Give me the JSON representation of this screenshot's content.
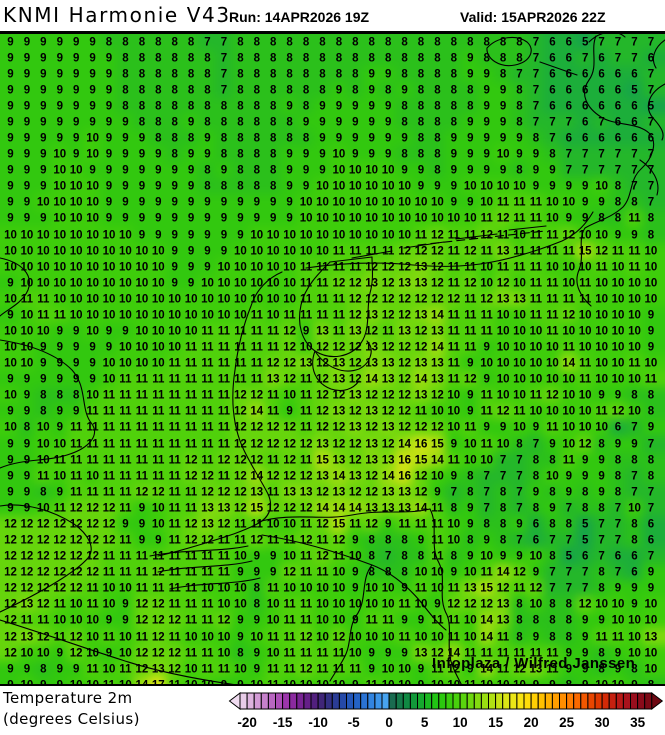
{
  "header": {
    "title": "KNMI Harmonie V43",
    "run": "Run: 14APR2026 19Z",
    "valid": "Valid: 15APR2026 22Z"
  },
  "map": {
    "attribution": "Infoplaza / Wilfred Janssen",
    "shading_colors": {
      "4": "#12985A",
      "5": "#16A44A",
      "6": "#1CAE3A",
      "7": "#24B72A",
      "8": "#2BC01B",
      "9": "#32C80F",
      "10": "#3ECD0B",
      "11": "#50D10B",
      "12": "#66D50C",
      "13": "#80D90E",
      "14": "#9CDC10",
      "15": "#B8DF12",
      "16": "#D0E214",
      "17": "#E4E416"
    },
    "grid": {
      "cols": 40,
      "rows": [
        "9 9 9 9 9 9 8 8 8 8 8 8 7 7 8 8 8 8 8 8 8 8 8 8 8 8 8 8 8 8 8 8 7 6 6 5 7 7 7 7",
        "9 9 9 9 9 9 9 8 8 8 8 8 8 7 8 8 8 8 8 8 8 8 8 8 8 8 8 8 9 8 8 8 7 6 6 7 6 7 7 6",
        "9 9 9 9 9 9 9 8 8 8 8 8 8 7 8 8 8 8 8 8 8 8 9 9 8 8 8 8 9 9 8 7 7 6 6 6 6 6 6 7",
        "9 9 9 9 9 9 9 8 8 8 8 8 8 7 8 8 8 8 8 8 9 8 9 8 9 8 8 8 8 9 9 8 7 6 6 6 6 6 5 7",
        "9 9 9 9 9 9 9 8 8 8 8 8 8 8 8 8 8 9 8 9 9 9 9 9 8 8 8 8 8 9 9 8 7 6 6 6 6 6 6 5",
        "9 9 9 9 9 9 9 9 8 8 8 9 8 8 8 8 8 8 9 9 9 9 9 9 8 8 8 8 9 9 9 8 7 7 7 6 7 6 6 7",
        "9 9 9 9 9 10 9 9 9 8 8 8 9 8 8 8 8 8 8 9 9 9 9 9 9 8 8 9 9 9 9 9 8 7 6 6 6 6 6 6",
        "9 9 9 10 9 10 9 9 9 9 8 9 9 8 8 8 8 9 9 9 10 9 9 9 8 8 8 9 9 9 10 9 9 8 7 7 7 7 7 7",
        "9 9 9 10 10 9 9 9 9 9 9 9 8 9 8 8 8 9 9 9 10 10 10 10 9 9 8 9 9 9 9 8 9 9 7 7 7 7 7 7",
        "9 9 9 10 10 10 9 9 9 9 9 9 8 8 8 8 8 9 9 10 10 10 10 10 10 9 9 9 10 10 10 10 9 9 9 9 10 8 7 7",
        "9 9 10 10 10 10 9 9 9 9 9 9 9 9 9 9 9 9 10 10 10 10 10 10 10 10 10 9 9 10 11 11 11 10 10 9 9 8 8 7",
        "9 9 9 10 10 10 9 9 9 9 9 9 9 9 9 9 9 9 10 10 10 10 10 10 10 10 10 10 10 11 12 11 11 10 9 9 8 8 11 8",
        "10 10 10 10 10 10 10 10 9 9 9 9 9 9 9 10 10 10 10 10 10 10 10 10 10 11 12 11 11 12 11 10 11 11 12 10 10 9 9 8",
        "10 10 10 10 10 10 10 10 10 10 9 9 9 9 10 10 10 10 10 10 11 11 11 11 12 12 12 11 12 11 13 11 11 11 11 15 12 11 11 10",
        "10 10 10 10 10 10 10 10 10 10 9 9 9 10 10 10 10 10 11 11 11 11 12 12 12 13 12 11 11 10 11 11 11 10 10 10 11 10 11 10",
        "9 10 10 10 10 10 10 10 10 10 9 9 10 10 10 10 10 10 11 11 12 12 13 12 13 13 12 11 12 10 12 10 11 11 10 11 10 10 10 10",
        "10 11 11 10 10 10 10 10 10 10 10 10 10 10 10 10 10 10 11 11 11 12 12 12 12 12 12 12 11 12 13 13 11 11 11 11 10 10 10 10",
        "9 10 11 11 10 10 10 10 10 10 10 10 10 10 10 11 10 11 11 11 11 12 13 12 12 13 14 11 11 11 10 10 11 11 12 10 10 10 10 9",
        "10 10 10 9 9 10 9 9 10 10 10 10 11 11 11 11 11 12 9 13 11 13 12 11 13 12 13 11 11 11 10 10 10 11 10 10 10 10 10 9",
        "10 10 9 9 9 9 9 10 10 10 10 11 11 11 11 11 11 12 10 12 12 12 13 12 12 12 14 11 11 9 10 10 10 10 11 10 10 10 10 9",
        "10 10 9 9 9 9 10 10 10 10 11 11 11 11 11 11 12 12 13 12 13 12 13 13 12 13 13 11 9 10 10 10 10 10 14 11 10 10 11 10",
        "9 9 9 9 9 9 10 11 11 11 11 11 11 11 11 11 13 12 11 12 13 12 14 13 12 14 13 11 12 9 10 10 10 10 10 11 10 10 10 11",
        "10 9 8 8 8 10 11 11 11 11 11 11 11 11 12 12 11 10 11 12 12 13 12 12 12 13 12 10 9 11 10 10 11 12 10 10 9 9 8 8",
        "9 9 8 9 9 11 11 11 11 11 11 11 11 11 12 14 11 9 11 12 13 12 13 12 12 11 10 10 9 11 12 11 10 10 10 10 11 12 10 8",
        "10 8 10 9 11 11 11 11 11 11 11 11 11 11 12 12 12 12 11 12 12 13 12 13 12 12 12 10 11 9 9 10 9 11 10 10 10 6 7 9",
        "9 9 10 10 11 11 11 11 11 11 11 11 11 11 12 12 12 12 12 13 12 12 13 12 14 16 15 9 10 11 10 8 7 9 10 12 8 9 9 7",
        "9 9 10 11 11 11 11 11 11 11 11 12 11 12 12 12 11 12 11 15 13 12 13 13 16 15 14 11 10 10 7 7 8 8 11 9 9 8 8 8",
        "9 9 11 10 11 10 11 11 11 11 11 12 12 11 12 14 12 12 12 13 14 13 12 14 16 12 10 9 8 7 7 7 8 10 9 9 9 8 7 8",
        "9 9 8 9 11 11 11 11 12 12 11 11 12 12 12 13 11 13 13 12 13 12 12 13 13 12 9 7 8 7 8 7 9 8 9 8 9 8 7 7",
        "9 9 10 11 12 12 12 11 9 10 11 11 13 13 12 15 12 12 12 14 14 14 13 13 13 14 11 8 9 7 8 7 8 9 7 8 8 7 10 7",
        "12 12 12 12 12 12 12 9 9 10 11 12 13 12 11 11 10 10 11 12 15 11 12 9 11 11 11 10 9 8 8 9 6 8 8 5 7 7 8 6",
        "12 12 12 12 12 12 12 11 9 9 11 12 12 11 11 12 11 11 12 11 12 9 8 8 8 9 11 10 8 9 8 7 6 7 7 5 7 7 8 6",
        "12 12 12 12 12 12 11 11 11 11 11 11 11 11 10 9 9 10 11 12 11 10 8 7 8 8 11 8 9 10 9 9 10 8 5 6 7 6 6 7",
        "12 12 12 12 12 12 11 11 11 12 11 11 11 11 9 9 9 12 11 11 10 9 8 8 8 10 10 9 10 11 14 12 9 7 7 7 8 7 6 9",
        "12 12 12 12 12 11 10 10 11 11 11 11 10 10 10 8 11 10 10 10 10 9 10 10 9 11 10 11 13 15 12 11 12 7 7 7 8 9 9 9",
        "12 13 12 11 10 11 10 9 12 12 11 11 11 10 10 8 10 11 11 10 10 10 10 10 11 10 9 12 12 12 13 8 10 8 8 12 10 10 9 10",
        "12 11 11 10 10 10 9 9 12 12 12 11 11 12 9 9 10 11 11 10 10 9 11 11 9 9 11 11 10 14 13 8 8 8 8 9 9 10 10 10",
        "12 13 12 11 12 10 11 10 11 12 11 10 10 10 9 10 11 11 12 10 12 10 10 10 11 10 10 11 10 14 11 8 9 8 8 9 11 11 10 13",
        "12 10 10 9 12 10 9 10 12 12 12 11 11 10 8 9 10 11 11 11 11 10 9 9 9 13 12 14 11 11 11 11 11 11 9 9 8 9 10 10",
        "9 9 8 9 9 11 10 11 12 13 12 10 11 11 10 9 11 11 12 11 11 11 9 10 10 9 11 12 9 14 11 12 13 11 9 9 8 9 8 10",
        "9 10 9 9 10 10 11 10 14 17 11 10 10 9 9 10 11 10 10 10 10 9 11 10 10 9 10 10 11 10 10 10 9 9 8 9 10 10 9 8"
      ]
    }
  },
  "legend": {
    "line1": "Temperature 2m",
    "line2": "(degrees Celsius)",
    "min": -21,
    "max": 36,
    "ticks": [
      "-20",
      "-15",
      "-10",
      "-5",
      "0",
      "5",
      "10",
      "15",
      "20",
      "25",
      "30",
      "35"
    ],
    "arrow_left": "#F0DCF0",
    "arrow_right": "#6E0812",
    "palette": [
      "#E8CCE8",
      "#DDB3DE",
      "#D29AD5",
      "#C681CB",
      "#B967C1",
      "#AC4EB7",
      "#9C35AB",
      "#8B2AA0",
      "#782394",
      "#651F88",
      "#52207E",
      "#402679",
      "#333084",
      "#2A3C96",
      "#2549A8",
      "#2356B8",
      "#2463C6",
      "#2A73D4",
      "#3284E0",
      "#3D95EA",
      "#48A4F0",
      "#1A6B50",
      "#15794A",
      "#108943",
      "#12993A",
      "#16A92E",
      "#1BB921",
      "#21C414",
      "#2BC90E",
      "#38CD0C",
      "#48D10C",
      "#5AD40D",
      "#6ED80E",
      "#84DB10",
      "#9ADE11",
      "#B0E013",
      "#C6E214",
      "#DAE416",
      "#ECE617",
      "#F9E411",
      "#FFDC0A",
      "#FFCF04",
      "#FFC000",
      "#FFB000",
      "#FF9F00",
      "#FF8E00",
      "#FF7C00",
      "#FA6900",
      "#F25700",
      "#E94600",
      "#DF3700",
      "#D32A07",
      "#C62010",
      "#B81817",
      "#A9121C",
      "#990E1D",
      "#8A0B1A",
      "#7C0915"
    ]
  }
}
